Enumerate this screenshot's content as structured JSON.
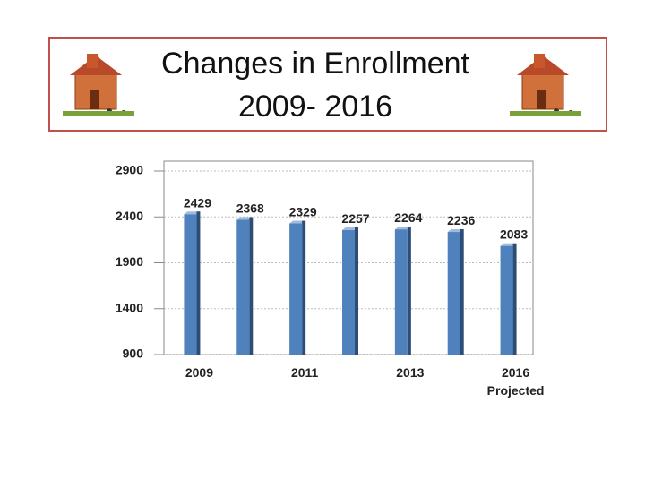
{
  "chart_data": {
    "type": "bar",
    "title": [
      "Changes in Enrollment",
      "2009- 2016"
    ],
    "categories": [
      "2009",
      null,
      "2011",
      null,
      "2013",
      null,
      "2016"
    ],
    "category_note": "Projected",
    "values": [
      2429,
      2368,
      2329,
      2257,
      2264,
      2236,
      2083
    ],
    "color": "#4f81bd",
    "ylim": [
      900,
      2900
    ],
    "yticks": [
      900,
      1400,
      1900,
      2400,
      2900
    ],
    "grid": true
  }
}
